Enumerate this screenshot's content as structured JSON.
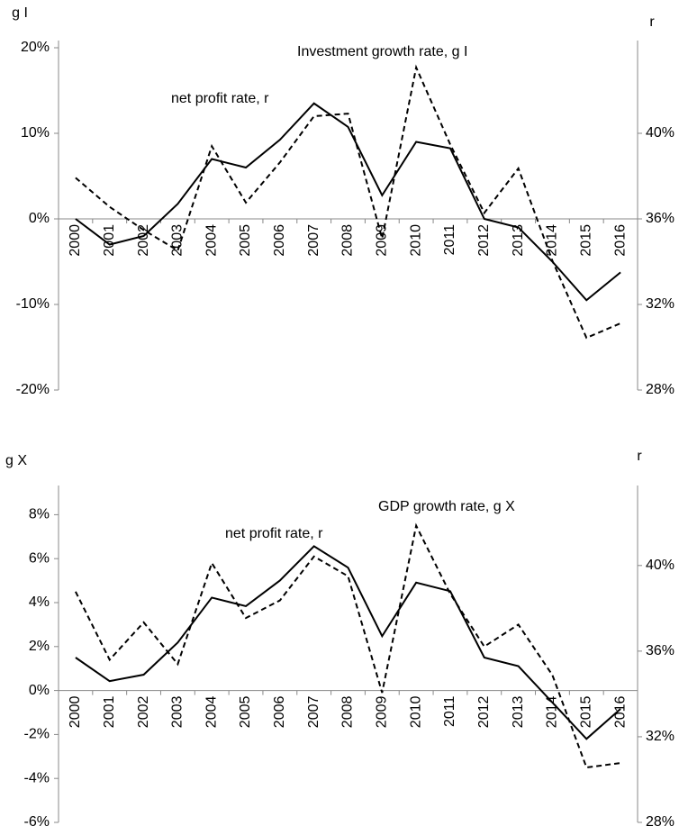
{
  "chart_data": [
    {
      "type": "line",
      "y_label": "g I",
      "y2_label": "r",
      "categories": [
        "2000",
        "2001",
        "2002",
        "2003",
        "2004",
        "2005",
        "2006",
        "2007",
        "2008",
        "2009",
        "2010",
        "2011",
        "2012",
        "2013",
        "2014",
        "2015",
        "2016"
      ],
      "ylim": [
        -20,
        20
      ],
      "yticks": [
        {
          "value": -20,
          "label": "-20%"
        },
        {
          "value": -10,
          "label": "-10%"
        },
        {
          "value": 0,
          "label": "0%"
        },
        {
          "value": 10,
          "label": "10%"
        },
        {
          "value": 20,
          "label": "20%"
        }
      ],
      "y2lim": [
        28,
        44
      ],
      "y2ticks": [
        {
          "value": 28,
          "label": "28%"
        },
        {
          "value": 32,
          "label": "32%"
        },
        {
          "value": 36,
          "label": "36%"
        },
        {
          "value": 40,
          "label": "40%"
        }
      ],
      "series": [
        {
          "name": "Investment growth rate, g I",
          "color": "#000000",
          "dashed": true,
          "values": [
            4.8,
            1.4,
            -1.3,
            -3.7,
            8.5,
            1.9,
            6.6,
            12.0,
            12.3,
            -2.3,
            17.7,
            8.7,
            0.7,
            5.9,
            -4.9,
            -13.9,
            -12.2
          ]
        },
        {
          "name": "net profit rate, r",
          "color": "#000000",
          "dashed": false,
          "axis": "y2",
          "values": [
            36.0,
            34.8,
            35.2,
            36.7,
            38.8,
            38.4,
            39.7,
            41.4,
            40.3,
            37.1,
            39.6,
            39.3,
            36.0,
            35.6,
            34.0,
            32.2,
            33.5
          ]
        }
      ]
    },
    {
      "type": "line",
      "y_label": "g X",
      "y2_label": "r",
      "categories": [
        "2000",
        "2001",
        "2002",
        "2003",
        "2004",
        "2005",
        "2006",
        "2007",
        "2008",
        "2009",
        "2010",
        "2011",
        "2012",
        "2013",
        "2014",
        "2015",
        "2016"
      ],
      "ylim": [
        -6,
        9
      ],
      "yticks": [
        {
          "value": -6,
          "label": "-6%"
        },
        {
          "value": -4,
          "label": "-4%"
        },
        {
          "value": -2,
          "label": "-2%"
        },
        {
          "value": 0,
          "label": "0%"
        },
        {
          "value": 2,
          "label": "2%"
        },
        {
          "value": 4,
          "label": "4%"
        },
        {
          "value": 6,
          "label": "6%"
        },
        {
          "value": 8,
          "label": "8%"
        }
      ],
      "y2lim": [
        28,
        43.4
      ],
      "y2ticks": [
        {
          "value": 28,
          "label": "28%"
        },
        {
          "value": 32,
          "label": "32%"
        },
        {
          "value": 36,
          "label": "36%"
        },
        {
          "value": 40,
          "label": "40%"
        }
      ],
      "series": [
        {
          "name": "GDP growth rate, g X",
          "color": "#000000",
          "dashed": true,
          "values": [
            4.5,
            1.4,
            3.1,
            1.2,
            5.8,
            3.3,
            4.1,
            6.1,
            5.2,
            -0.1,
            7.5,
            4.4,
            2.0,
            3.0,
            0.7,
            -3.5,
            -3.3
          ]
        },
        {
          "name": "net profit rate, r",
          "color": "#000000",
          "dashed": false,
          "axis": "y2",
          "values": [
            35.7,
            34.6,
            34.9,
            36.4,
            38.5,
            38.1,
            39.3,
            40.9,
            39.9,
            36.7,
            39.2,
            38.8,
            35.7,
            35.3,
            33.6,
            31.9,
            33.3
          ]
        }
      ]
    }
  ]
}
